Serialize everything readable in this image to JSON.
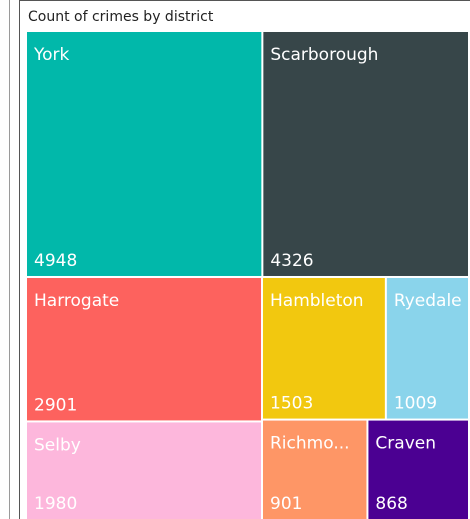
{
  "chart_data": {
    "type": "treemap",
    "title": "Count of crimes by district",
    "categories": [
      "York",
      "Scarborough",
      "Harrogate",
      "Selby",
      "Hambleton",
      "Ryedale",
      "Richmo...",
      "Craven"
    ],
    "values": [
      4948,
      4326,
      2901,
      1980,
      1503,
      1009,
      901,
      868
    ],
    "colors": [
      "#01b8aa",
      "#374649",
      "#fd625e",
      "#fdb7dc",
      "#f2c80f",
      "#8ad4eb",
      "#fe9666",
      "#4b0092"
    ]
  }
}
